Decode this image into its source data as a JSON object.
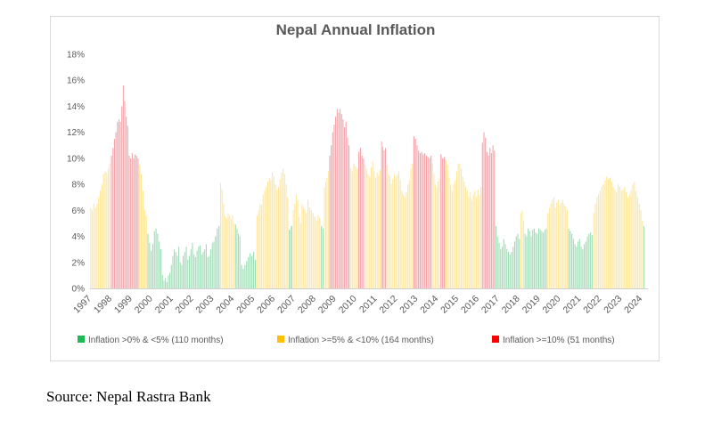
{
  "chart_data": {
    "type": "bar",
    "title": "Nepal Annual Inflation",
    "xlabel": "",
    "ylabel": "",
    "ylim": [
      0,
      18
    ],
    "y_ticks": [
      "0%",
      "2%",
      "4%",
      "6%",
      "8%",
      "10%",
      "12%",
      "14%",
      "16%",
      "18%"
    ],
    "y_tick_values": [
      0,
      2,
      4,
      6,
      8,
      10,
      12,
      14,
      16,
      18
    ],
    "x_tick_labels": [
      "1997",
      "1998",
      "1999",
      "2000",
      "2001",
      "2002",
      "2003",
      "2004",
      "2005",
      "2006",
      "2007",
      "2008",
      "2009",
      "2010",
      "2011",
      "2012",
      "2013",
      "2014",
      "2015",
      "2016",
      "2017",
      "2018",
      "2019",
      "2020",
      "2021",
      "2022",
      "2023",
      "2024"
    ],
    "unit": "% (year-on-year, monthly)",
    "legend_position": "bottom",
    "grid": false,
    "legend": [
      {
        "label": "Inflation >0% & <5% (110 months)",
        "color": "#9fdcb6",
        "key_color": "#1db954"
      },
      {
        "label": "Inflation >=5% & <10%  (164 months)",
        "color": "#ffe699",
        "key_color": "#ffc000"
      },
      {
        "label": "Inflation >=10% (51 months)",
        "color": "#f4a0a6",
        "key_color": "#ff0000"
      }
    ],
    "thresholds": {
      "low": 5,
      "high": 10
    },
    "bands": [
      {
        "start": 1997.0,
        "end": 1997.3,
        "values": [
          6.2,
          6.0,
          6.5,
          6.2
        ]
      },
      {
        "start": 1997.3,
        "end": 1998.0,
        "values": [
          6.5,
          7.0,
          7.5,
          8.0,
          8.8,
          9.0,
          8.9,
          9.2,
          9.6
        ]
      },
      {
        "start": 1998.0,
        "end": 1998.85,
        "values": [
          10.2,
          10.8,
          11.5,
          12.0,
          12.8,
          13.0,
          12.8,
          14.0,
          15.6,
          14.4,
          13.2,
          12.5
        ]
      },
      {
        "start": 1998.85,
        "end": 1999.35,
        "values": [
          10.2,
          10.0,
          10.4,
          10.0,
          10.3,
          10.2,
          10.0
        ]
      },
      {
        "start": 1999.35,
        "end": 1999.75,
        "values": [
          9.5,
          8.8,
          7.5,
          6.0,
          5.6
        ]
      },
      {
        "start": 1999.75,
        "end": 2000.45,
        "values": [
          4.2,
          3.5,
          2.9,
          3.4,
          4.4,
          4.6,
          4.2,
          3.6,
          3.0
        ]
      },
      {
        "start": 2000.45,
        "end": 2001.45,
        "values": [
          1.0,
          0.6,
          0.8,
          0.5,
          1.0,
          1.2,
          1.8,
          2.5,
          3.0,
          2.8,
          2.5,
          3.2,
          2.0,
          1.8
        ]
      },
      {
        "start": 2001.45,
        "end": 2003.0,
        "values": [
          2.5,
          2.8,
          3.2,
          2.2,
          2.5,
          3.0,
          3.5,
          2.6,
          2.4,
          2.9,
          3.2,
          3.3,
          2.6,
          2.8,
          3.0,
          3.4,
          2.4,
          2.5,
          3.0,
          3.5,
          3.6
        ]
      },
      {
        "start": 2003.0,
        "end": 2003.25,
        "values": [
          4.0,
          4.6,
          4.8
        ]
      },
      {
        "start": 2003.25,
        "end": 2003.9,
        "values": [
          8.1,
          7.6,
          6.5,
          5.6,
          5.4,
          5.8,
          5.6,
          5.3,
          5.6
        ]
      },
      {
        "start": 2003.9,
        "end": 2004.25,
        "values": [
          5.0,
          4.9,
          4.6,
          4.2,
          4.0
        ]
      },
      {
        "start": 2004.25,
        "end": 2005.0,
        "values": [
          1.8,
          1.5,
          1.8,
          2.1,
          2.4,
          2.7,
          2.5,
          2.8,
          2.2
        ]
      },
      {
        "start": 2005.0,
        "end": 2006.55,
        "values": [
          5.6,
          6.0,
          6.5,
          6.4,
          7.2,
          7.5,
          7.8,
          8.2,
          8.5,
          8.3,
          8.9,
          8.6,
          8.0,
          7.6,
          7.8,
          8.4,
          8.9,
          9.2,
          8.8,
          8.0,
          7.0
        ]
      },
      {
        "start": 2006.55,
        "end": 2006.75,
        "values": [
          4.5,
          4.8
        ]
      },
      {
        "start": 2006.75,
        "end": 2007.45,
        "values": [
          6.0,
          6.5,
          7.2,
          6.8,
          5.5,
          5.0,
          6.5,
          6.2,
          6.0,
          5.8
        ]
      },
      {
        "start": 2007.45,
        "end": 2008.1,
        "values": [
          6.8,
          6.2,
          6.0,
          5.8,
          5.5,
          5.2,
          5.6,
          5.4
        ]
      },
      {
        "start": 2008.1,
        "end": 2008.25,
        "values": [
          4.8,
          4.6
        ]
      },
      {
        "start": 2008.25,
        "end": 2008.5,
        "values": [
          7.8,
          8.2,
          8.5,
          9.0
        ]
      },
      {
        "start": 2008.5,
        "end": 2009.5,
        "values": [
          10.2,
          11.0,
          12.0,
          12.6,
          13.2,
          13.8,
          13.5,
          13.8,
          13.4,
          13.0,
          12.4,
          12.8,
          11.6,
          11.0
        ]
      },
      {
        "start": 2009.5,
        "end": 2009.9,
        "values": [
          9.2,
          9.0,
          9.6,
          9.4,
          9.2
        ]
      },
      {
        "start": 2009.9,
        "end": 2010.2,
        "values": [
          10.5,
          10.8,
          10.2,
          10.0
        ]
      },
      {
        "start": 2010.2,
        "end": 2011.0,
        "values": [
          9.5,
          9.2,
          8.8,
          8.6,
          9.3,
          9.8,
          9.0,
          8.5,
          8.9,
          8.7,
          9.1
        ]
      },
      {
        "start": 2011.0,
        "end": 2011.25,
        "values": [
          11.3,
          10.9,
          10.6,
          10.8
        ]
      },
      {
        "start": 2011.25,
        "end": 2012.55,
        "values": [
          9.5,
          8.8,
          8.6,
          8.0,
          8.4,
          8.8,
          8.6,
          8.8,
          9.0,
          8.3,
          7.5,
          7.2,
          7.0,
          7.4,
          8.0,
          8.3,
          9.2,
          9.6
        ]
      },
      {
        "start": 2012.55,
        "end": 2013.45,
        "values": [
          11.7,
          11.5,
          11.0,
          10.6,
          10.4,
          10.5,
          10.3,
          10.4,
          10.2,
          10.1,
          10.0,
          10.2
        ]
      },
      {
        "start": 2013.45,
        "end": 2013.85,
        "values": [
          9.6,
          8.8,
          8.0,
          7.8,
          8.2,
          8.4
        ]
      },
      {
        "start": 2013.85,
        "end": 2014.1,
        "values": [
          10.3,
          10.0,
          10.1
        ]
      },
      {
        "start": 2014.1,
        "end": 2015.85,
        "values": [
          9.8,
          9.5,
          8.5,
          8.0,
          7.5,
          8.0,
          8.3,
          9.0,
          9.6,
          9.6,
          9.2,
          8.6,
          8.2,
          7.8,
          7.5,
          7.0,
          7.4,
          6.8,
          7.2,
          7.5,
          7.0,
          7.6,
          7.2,
          7.8
        ]
      },
      {
        "start": 2015.85,
        "end": 2016.5,
        "values": [
          11.2,
          12.0,
          11.6,
          10.5,
          10.2,
          10.8,
          10.4,
          11.0,
          10.6
        ]
      },
      {
        "start": 2016.5,
        "end": 2017.7,
        "values": [
          4.8,
          4.0,
          3.5,
          3.0,
          3.2,
          3.8,
          3.4,
          3.0,
          2.8,
          2.6,
          2.8,
          3.2,
          3.6,
          4.0,
          4.2,
          3.8
        ]
      },
      {
        "start": 2017.7,
        "end": 2017.9,
        "values": [
          5.8,
          6.0,
          5.2
        ]
      },
      {
        "start": 2017.9,
        "end": 2019.0,
        "values": [
          4.2,
          4.0,
          4.6,
          4.4,
          4.0,
          4.5,
          4.6,
          4.3,
          4.2,
          4.6,
          4.5,
          4.4,
          4.3,
          4.5,
          4.6
        ]
      },
      {
        "start": 2019.0,
        "end": 2020.0,
        "values": [
          5.8,
          6.2,
          6.5,
          6.8,
          7.0,
          6.2,
          6.6,
          6.8,
          6.4,
          6.6,
          6.8,
          6.5,
          6.3,
          6.0
        ]
      },
      {
        "start": 2020.0,
        "end": 2021.2,
        "values": [
          4.6,
          4.4,
          4.2,
          3.8,
          3.4,
          3.2,
          3.6,
          3.8,
          3.2,
          3.0,
          3.4,
          3.6,
          4.0,
          4.2,
          4.3,
          4.1
        ]
      },
      {
        "start": 2021.2,
        "end": 2023.55,
        "values": [
          5.8,
          6.5,
          7.0,
          7.2,
          7.5,
          7.8,
          8.0,
          8.3,
          8.6,
          8.4,
          8.5,
          8.2,
          7.8,
          7.6,
          7.4,
          8.0,
          7.8,
          7.5,
          7.6,
          7.8,
          7.4,
          7.0,
          7.2,
          7.5,
          8.0,
          8.2,
          7.5,
          7.0,
          6.5,
          6.0
        ]
      },
      {
        "start": 2023.55,
        "end": 2023.7,
        "values": [
          5.2,
          4.8
        ]
      }
    ]
  },
  "source": "Source: Nepal Rastra Bank"
}
